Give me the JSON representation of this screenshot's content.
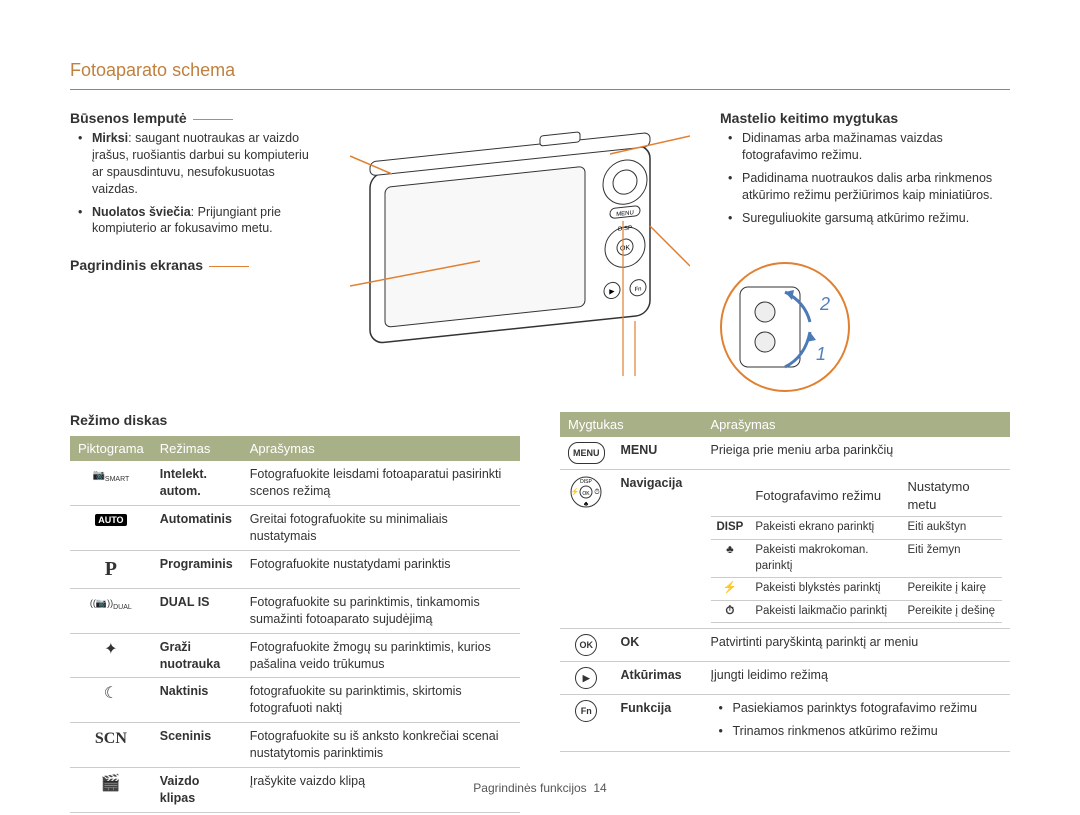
{
  "page_title": "Fotoaparato schema",
  "status_lamp": {
    "heading": "Būsenos lemputė",
    "items": [
      "<b>Mirksi</b>: saugant nuotraukas ar vaizdo įrašus, ruošiantis darbui su kompiuteriu ar spausdintuvu, nesufokusuotas vaizdas.",
      "<b>Nuolatos šviečia</b>: Prijungiant prie kompiuterio ar fokusavimo metu."
    ]
  },
  "main_screen": {
    "heading": "Pagrindinis ekranas"
  },
  "zoom": {
    "heading": "Mastelio keitimo mygtukas",
    "items": [
      "Didinamas arba mažinamas vaizdas fotografavimo režimu.",
      "Padidinama nuotraukos dalis arba rinkmenos atkūrimo režimu peržiūrimos kaip miniatiūros.",
      "Sureguliuokite garsumą atkūrimo režimu."
    ]
  },
  "detail_labels": {
    "one": "1",
    "two": "2"
  },
  "mode_dial": {
    "heading": "Režimo diskas",
    "columns": [
      "Piktograma",
      "Režimas",
      "Aprašymas"
    ],
    "rows": [
      {
        "icon": "smart",
        "mode": "Intelekt. autom.",
        "desc": "Fotografuokite leisdami fotoaparatui pasirinkti scenos režimą"
      },
      {
        "icon": "auto",
        "mode": "Automatinis",
        "desc": "Greitai fotografuokite su minimaliais nustatymais"
      },
      {
        "icon": "P",
        "mode": "Programinis",
        "desc": "Fotografuokite nustatydami parinktis"
      },
      {
        "icon": "dual",
        "mode": "DUAL IS",
        "desc": "Fotografuokite su parinktimis, tinkamomis sumažinti fotoaparato sujudėjimą"
      },
      {
        "icon": "beauty",
        "mode": "Graži nuotrauka",
        "desc": "Fotografuokite žmogų su parinktimis, kurios pašalina veido trūkumus"
      },
      {
        "icon": "night",
        "mode": "Naktinis",
        "desc": "fotografuokite su parinktimis, skirtomis fotografuoti naktį"
      },
      {
        "icon": "SCN",
        "mode": "Sceninis",
        "desc": "Fotografuokite su iš anksto konkrečiai scenai nustatytomis parinktimis"
      },
      {
        "icon": "video",
        "mode": "Vaizdo klipas",
        "desc": "Įrašykite vaizdo klipą"
      }
    ]
  },
  "buttons": {
    "columns": [
      "Mygtukas",
      "",
      "Aprašymas"
    ],
    "rows": [
      {
        "icon": "menu",
        "label": "MENU",
        "desc": "Prieiga prie meniu arba parinkčių"
      },
      {
        "icon": "nav",
        "label": "Navigacija",
        "nav": {
          "headers": [
            "Fotografavimo režimu",
            "Nustatymo metu"
          ],
          "items": [
            {
              "k": "DISP",
              "a": "Pakeisti ekrano parinktį",
              "b": "Eiti aukštyn"
            },
            {
              "k": "♣",
              "a": "Pakeisti makrokoman. parinktį",
              "b": "Eiti žemyn"
            },
            {
              "k": "⚡",
              "a": "Pakeisti blykstės parinktį",
              "b": "Pereikite į kairę"
            },
            {
              "k": "⏱",
              "a": "Pakeisti laikmačio parinktį",
              "b": "Pereikite į dešinę"
            }
          ]
        }
      },
      {
        "icon": "ok",
        "label": "OK",
        "desc": "Patvirtinti paryškintą parinktį ar meniu"
      },
      {
        "icon": "play",
        "label": "Atkūrimas",
        "desc": "Įjungti leidimo režimą"
      },
      {
        "icon": "fn",
        "label": "Funkcija",
        "fn_items": [
          "Pasiekiamos parinktys fotografavimo režimu",
          "Trinamos rinkmenos atkūrimo režimu"
        ]
      }
    ]
  },
  "footer": {
    "label": "Pagrindinės funkcijos",
    "page": "14"
  },
  "colors": {
    "accent": "#e08030",
    "header_bg": "#a8b088",
    "title": "#c08040"
  }
}
